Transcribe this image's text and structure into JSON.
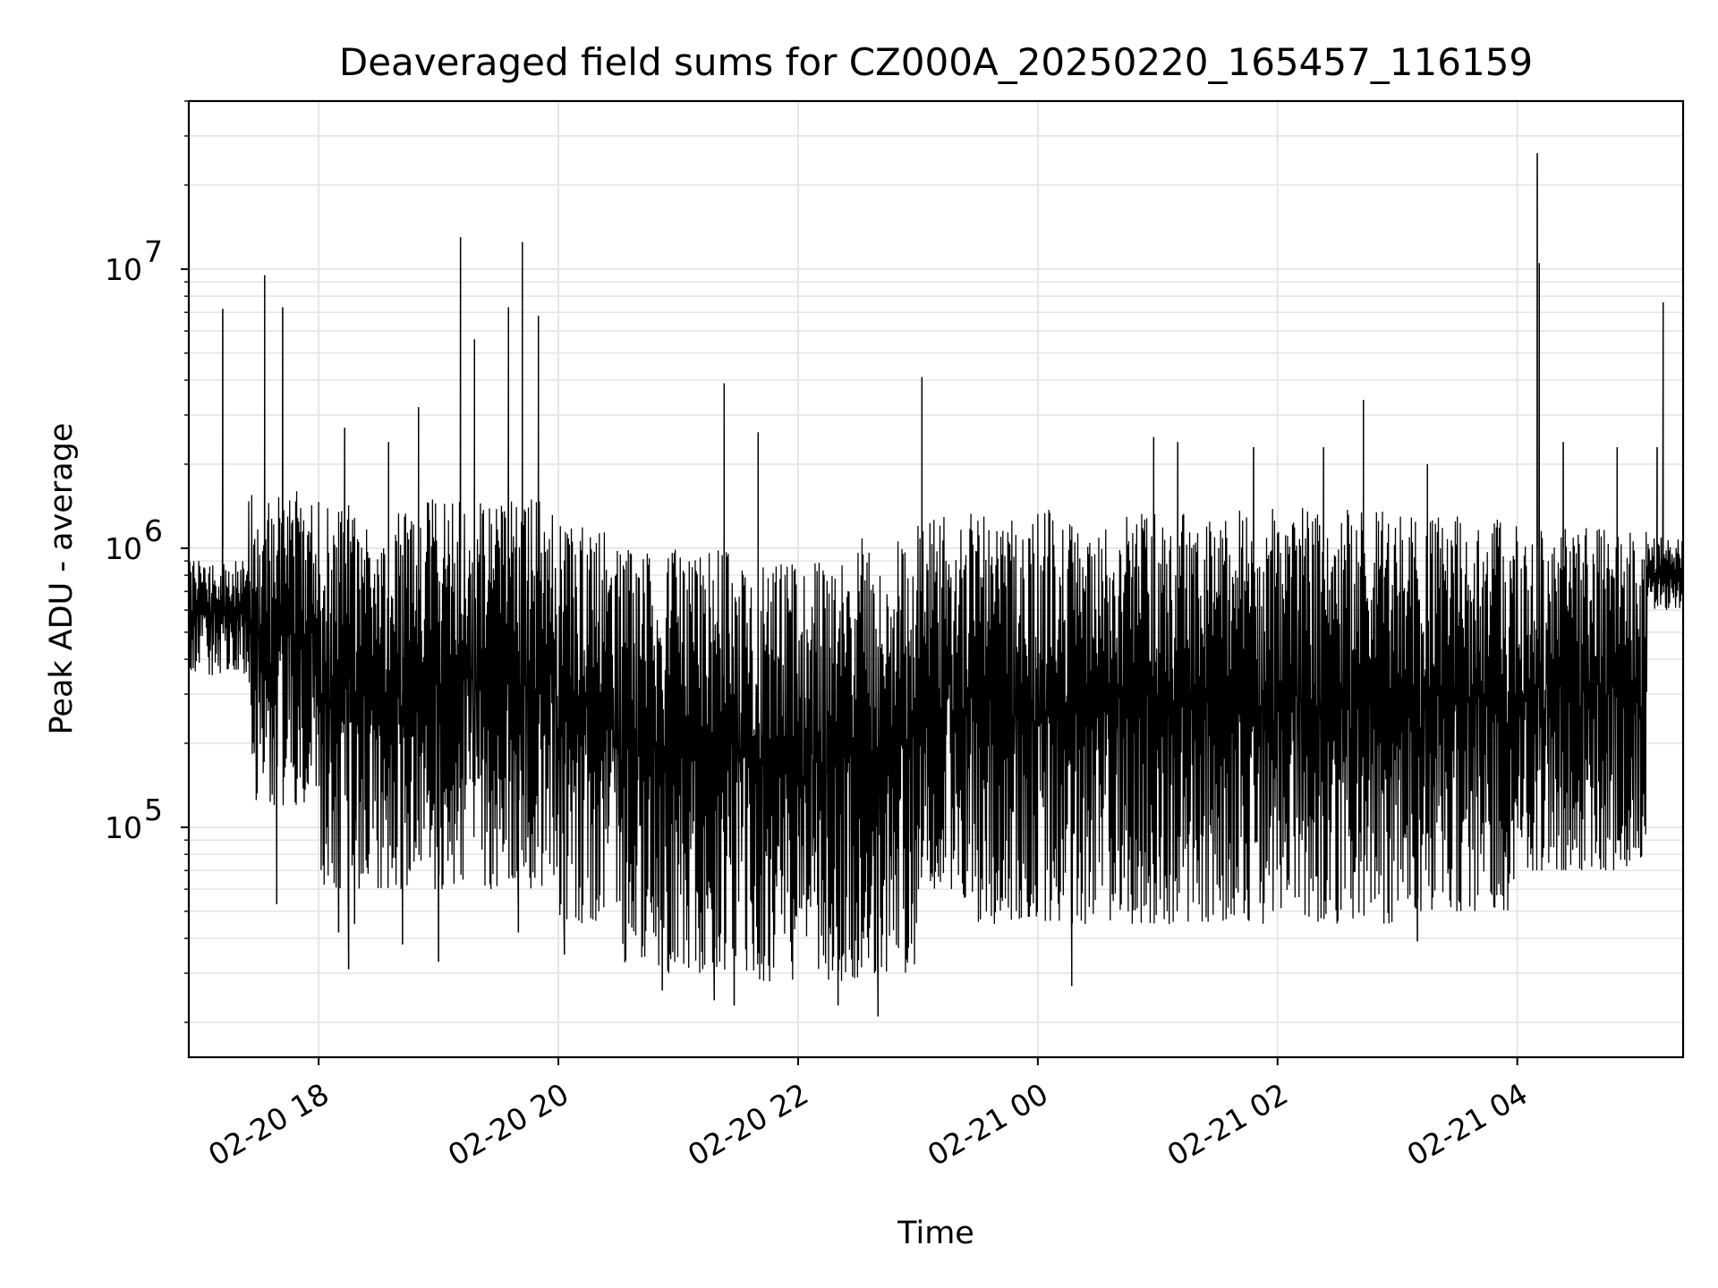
{
  "chart_data": {
    "type": "line",
    "title": "Deaveraged field sums for CZ000A_20250220_165457_116159",
    "xlabel": "Time",
    "ylabel": "Peak ADU - average",
    "yscale": "log",
    "xlim": [
      "2025-02-20 16:55",
      "2025-02-21 05:23"
    ],
    "ylim": [
      15000,
      40000000
    ],
    "grid": true,
    "line_color": "#000000",
    "grid_color": "#e6e6e6",
    "x_ticks": [
      {
        "value": "2025-02-20 18:00",
        "label": "02-20 18"
      },
      {
        "value": "2025-02-20 20:00",
        "label": "02-20 20"
      },
      {
        "value": "2025-02-20 22:00",
        "label": "02-20 22"
      },
      {
        "value": "2025-02-21 00:00",
        "label": "02-21 00"
      },
      {
        "value": "2025-02-21 02:00",
        "label": "02-21 02"
      },
      {
        "value": "2025-02-21 04:00",
        "label": "02-21 04"
      }
    ],
    "y_ticks": [
      {
        "value": 100000,
        "base": "10",
        "exp": "5"
      },
      {
        "value": 1000000,
        "base": "10",
        "exp": "6"
      },
      {
        "value": 10000000,
        "base": "10",
        "exp": "7"
      }
    ],
    "series": [
      {
        "color": "#000000",
        "segments": [
          {
            "x": [
              "2025-02-20 16:55",
              "2025-02-20 17:25"
            ],
            "lo": 350000,
            "hi": 900000
          },
          {
            "x": [
              "2025-02-20 17:25",
              "2025-02-20 18:00"
            ],
            "lo": 120000,
            "hi": 1600000
          },
          {
            "x": [
              "2025-02-20 18:00",
              "2025-02-20 19:00"
            ],
            "lo": 60000,
            "hi": 1500000
          },
          {
            "x": [
              "2025-02-20 19:00",
              "2025-02-20 20:00"
            ],
            "lo": 60000,
            "hi": 1500000
          },
          {
            "x": [
              "2025-02-20 20:00",
              "2025-02-20 20:30"
            ],
            "lo": 45000,
            "hi": 1200000
          },
          {
            "x": [
              "2025-02-20 20:30",
              "2025-02-20 21:30"
            ],
            "lo": 30000,
            "hi": 1000000
          },
          {
            "x": [
              "2025-02-20 21:30",
              "2025-02-20 22:30"
            ],
            "lo": 28000,
            "hi": 900000
          },
          {
            "x": [
              "2025-02-20 22:30",
              "2025-02-20 23:00"
            ],
            "lo": 30000,
            "hi": 1100000
          },
          {
            "x": [
              "2025-02-20 23:00",
              "2025-02-20 23:20"
            ],
            "lo": 60000,
            "hi": 1300000
          },
          {
            "x": [
              "2025-02-20 23:20",
              "2025-02-21 00:30"
            ],
            "lo": 45000,
            "hi": 1400000
          },
          {
            "x": [
              "2025-02-21 00:30",
              "2025-02-21 03:00"
            ],
            "lo": 45000,
            "hi": 1400000
          },
          {
            "x": [
              "2025-02-21 03:00",
              "2025-02-21 04:00"
            ],
            "lo": 50000,
            "hi": 1300000
          },
          {
            "x": [
              "2025-02-21 04:00",
              "2025-02-21 05:05"
            ],
            "lo": 70000,
            "hi": 1200000
          },
          {
            "x": [
              "2025-02-21 05:05",
              "2025-02-21 05:23"
            ],
            "lo": 600000,
            "hi": 1100000
          }
        ],
        "spikes": [
          {
            "x": "2025-02-20 17:12",
            "y": 7200000
          },
          {
            "x": "2025-02-20 17:33",
            "y": 9500000
          },
          {
            "x": "2025-02-20 17:42",
            "y": 7300000
          },
          {
            "x": "2025-02-20 18:13",
            "y": 2700000
          },
          {
            "x": "2025-02-20 18:35",
            "y": 2400000
          },
          {
            "x": "2025-02-20 18:50",
            "y": 3200000
          },
          {
            "x": "2025-02-20 19:11",
            "y": 13000000
          },
          {
            "x": "2025-02-20 19:18",
            "y": 5600000
          },
          {
            "x": "2025-02-20 19:35",
            "y": 7300000
          },
          {
            "x": "2025-02-20 19:42",
            "y": 12500000
          },
          {
            "x": "2025-02-20 19:50",
            "y": 6800000
          },
          {
            "x": "2025-02-20 21:23",
            "y": 3900000
          },
          {
            "x": "2025-02-20 21:40",
            "y": 2600000
          },
          {
            "x": "2025-02-20 23:02",
            "y": 4100000
          },
          {
            "x": "2025-02-21 00:58",
            "y": 2500000
          },
          {
            "x": "2025-02-21 01:10",
            "y": 2400000
          },
          {
            "x": "2025-02-21 01:48",
            "y": 2300000
          },
          {
            "x": "2025-02-21 02:23",
            "y": 2300000
          },
          {
            "x": "2025-02-21 02:43",
            "y": 3400000
          },
          {
            "x": "2025-02-21 03:15",
            "y": 2000000
          },
          {
            "x": "2025-02-21 04:10",
            "y": 26000000
          },
          {
            "x": "2025-02-21 04:11",
            "y": 10500000
          },
          {
            "x": "2025-02-21 04:23",
            "y": 2400000
          },
          {
            "x": "2025-02-21 04:50",
            "y": 2300000
          },
          {
            "x": "2025-02-21 05:10",
            "y": 2300000
          },
          {
            "x": "2025-02-21 05:13",
            "y": 7600000
          }
        ],
        "dips": [
          {
            "x": "2025-02-20 17:39",
            "y": 53000
          },
          {
            "x": "2025-02-20 18:10",
            "y": 42000
          },
          {
            "x": "2025-02-20 18:15",
            "y": 31000
          },
          {
            "x": "2025-02-20 18:18",
            "y": 45000
          },
          {
            "x": "2025-02-20 18:42",
            "y": 38000
          },
          {
            "x": "2025-02-20 19:00",
            "y": 33000
          },
          {
            "x": "2025-02-20 19:40",
            "y": 42000
          },
          {
            "x": "2025-02-20 20:03",
            "y": 35000
          },
          {
            "x": "2025-02-20 20:52",
            "y": 26000
          },
          {
            "x": "2025-02-20 21:18",
            "y": 24000
          },
          {
            "x": "2025-02-20 21:28",
            "y": 23000
          },
          {
            "x": "2025-02-20 22:20",
            "y": 23000
          },
          {
            "x": "2025-02-20 22:40",
            "y": 21000
          },
          {
            "x": "2025-02-21 00:17",
            "y": 27000
          },
          {
            "x": "2025-02-21 03:10",
            "y": 39000
          }
        ]
      }
    ]
  }
}
